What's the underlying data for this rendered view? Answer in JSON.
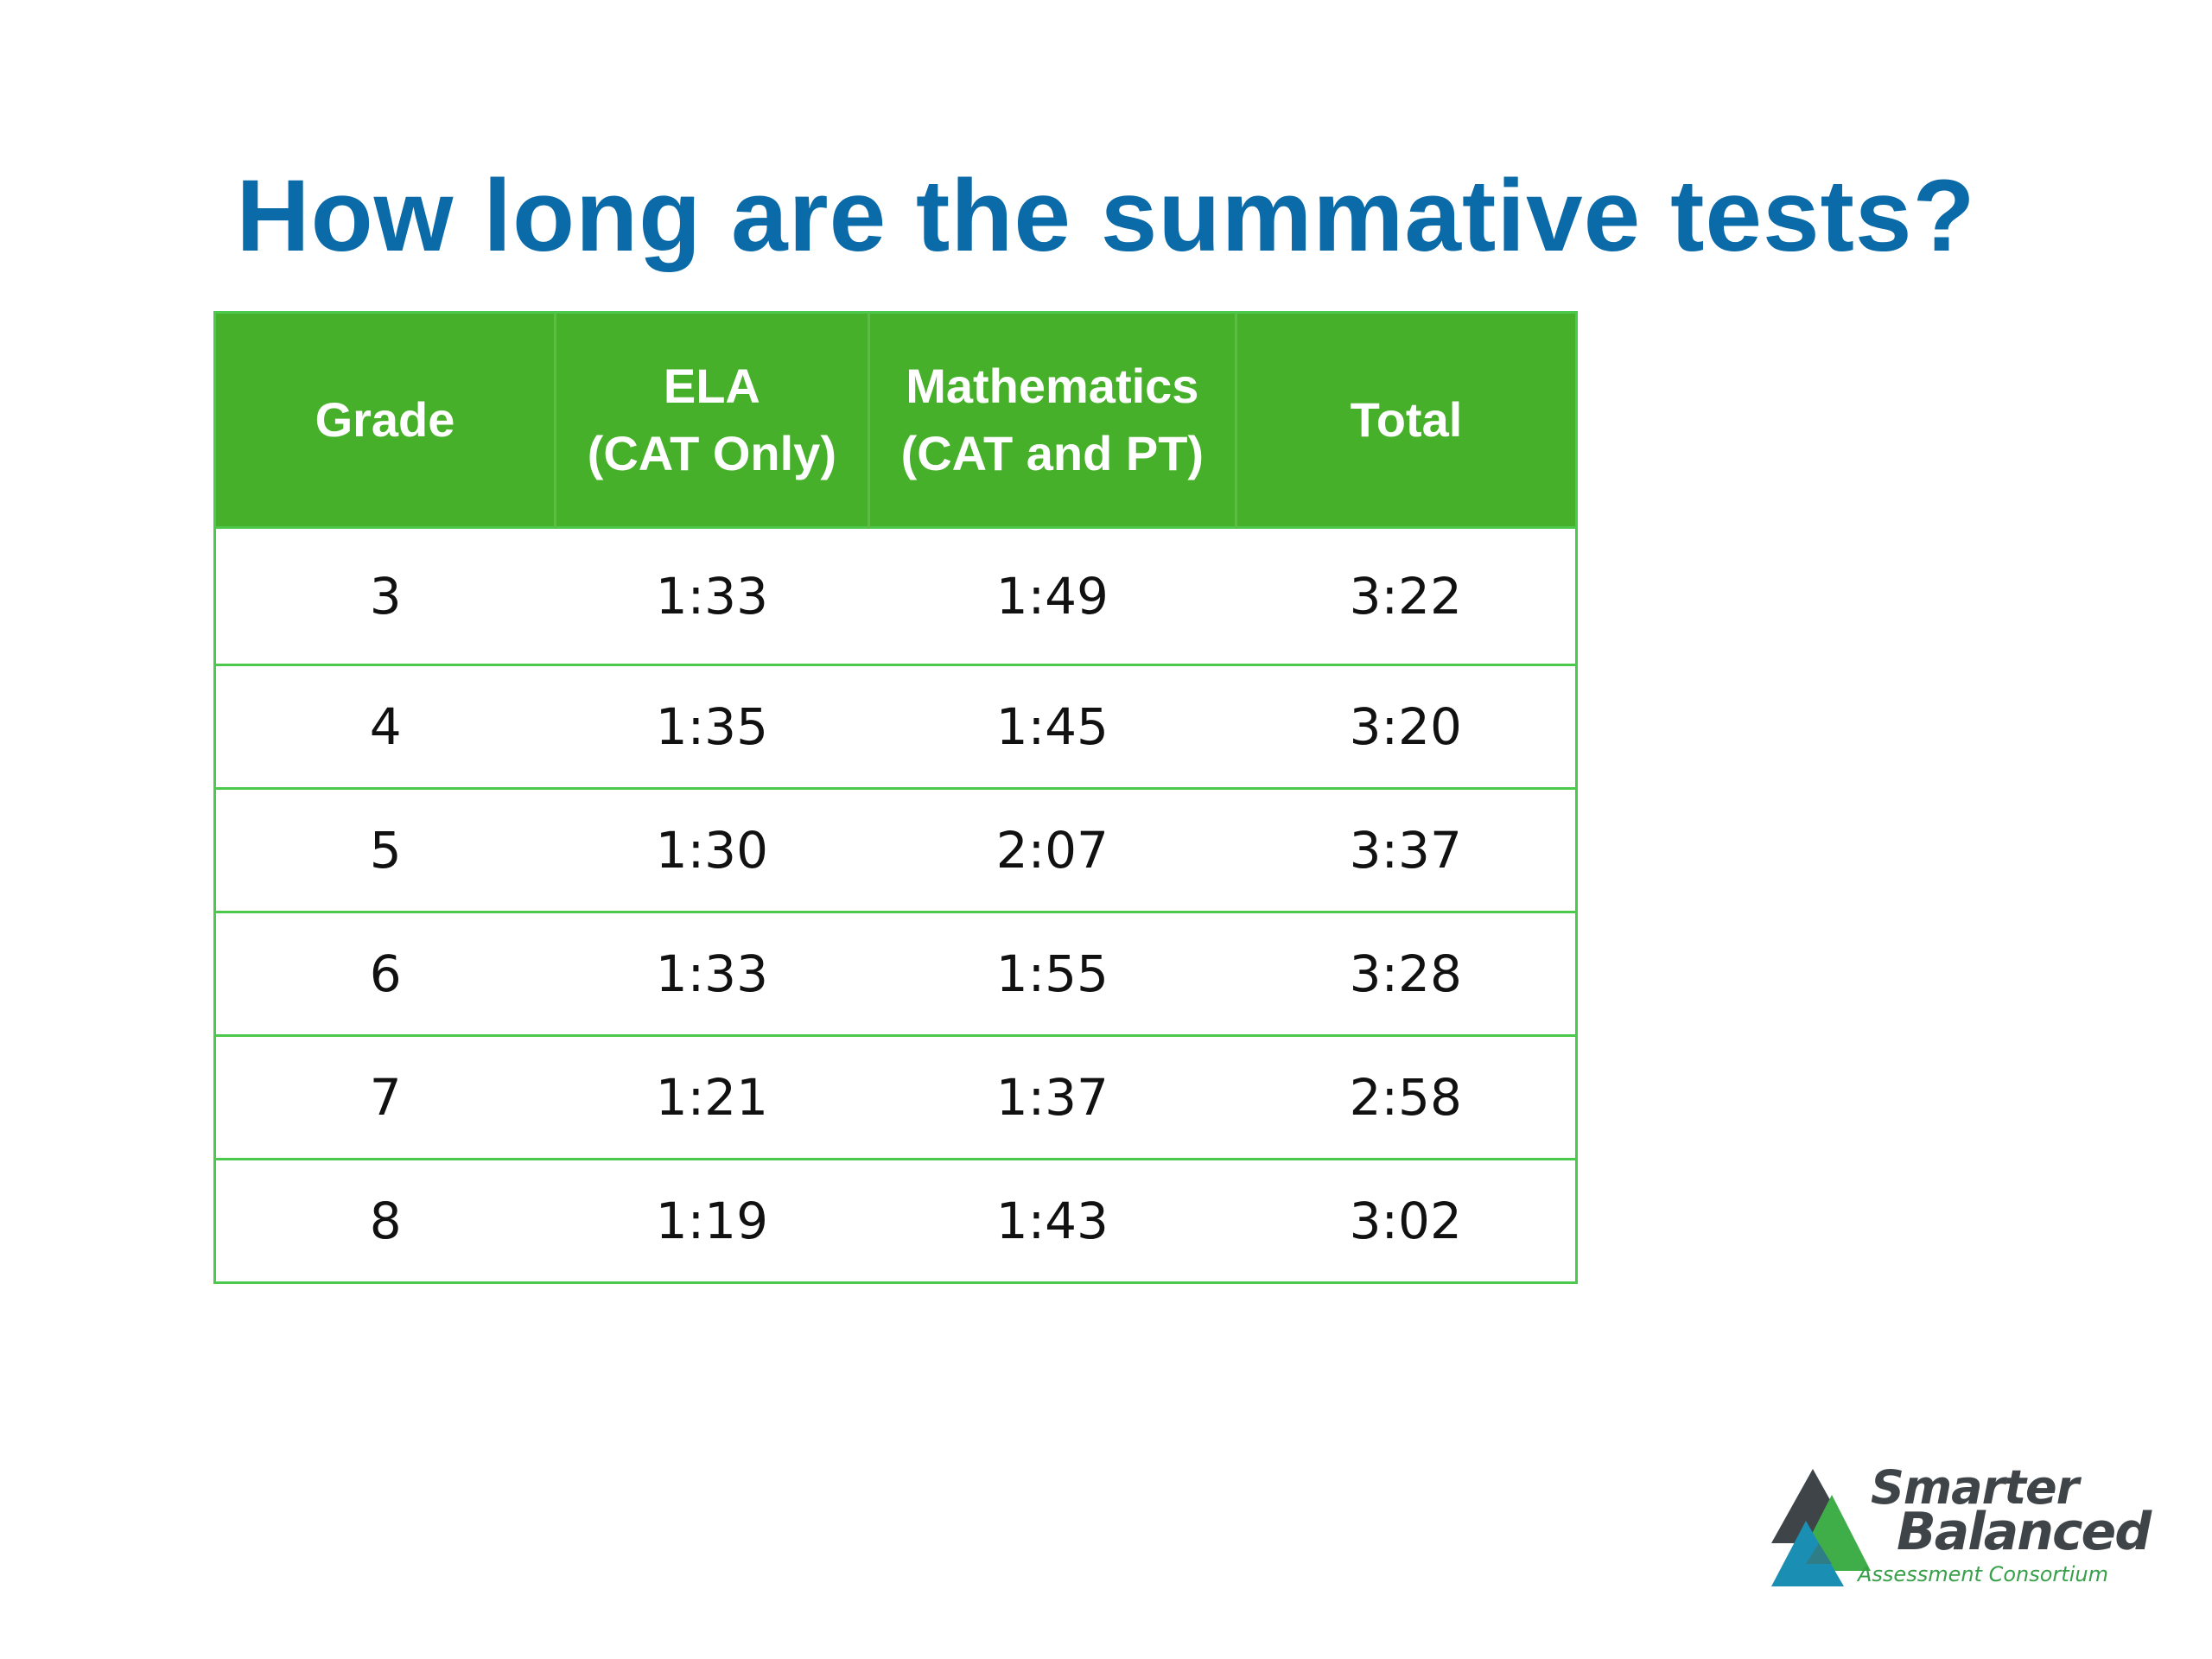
{
  "slide": {
    "title": "How long are the summative tests?"
  },
  "table": {
    "headers": [
      {
        "line1": "Grade",
        "line2": ""
      },
      {
        "line1": "ELA",
        "line2": "(CAT Only)"
      },
      {
        "line1": "Mathematics",
        "line2": "(CAT and PT)"
      },
      {
        "line1": "Total",
        "line2": ""
      }
    ],
    "rows": [
      [
        "3",
        "1:33",
        "1:49",
        "3:22"
      ],
      [
        "4",
        "1:35",
        "1:45",
        "3:20"
      ],
      [
        "5",
        "1:30",
        "2:07",
        "3:37"
      ],
      [
        "6",
        "1:33",
        "1:55",
        "3:28"
      ],
      [
        "7",
        "1:21",
        "1:37",
        "2:58"
      ],
      [
        "8",
        "1:19",
        "1:43",
        "3:02"
      ]
    ]
  },
  "logo": {
    "line1": "Smarter",
    "line2": "Balanced",
    "line3": "Assessment Consortium"
  },
  "colors": {
    "title": "#0b6aa8",
    "header_bg": "#47b02b",
    "border": "#4cc94c"
  }
}
